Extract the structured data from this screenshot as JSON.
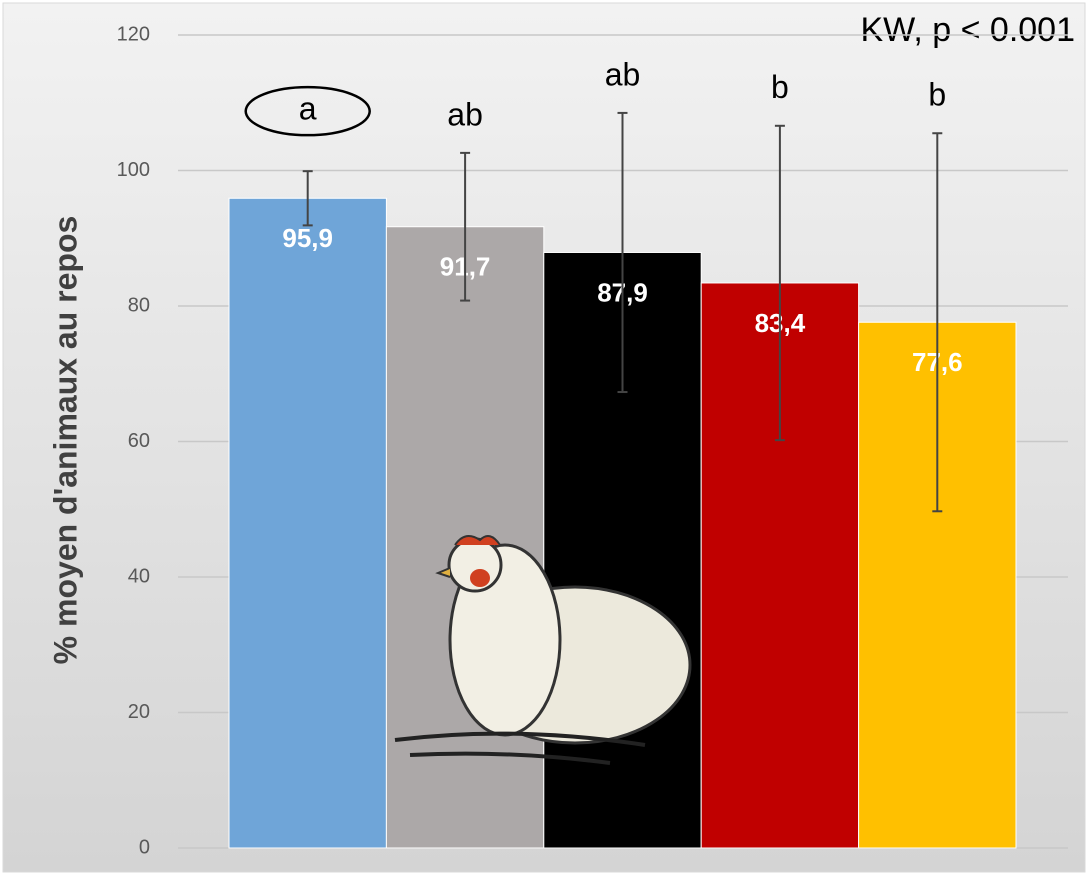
{
  "chart_data": {
    "type": "bar",
    "ylabel": "% moyen d'animaux au repos",
    "annotation": "KW, p < 0.001",
    "categories": [
      null,
      null,
      null,
      null,
      null
    ],
    "values": [
      95.9,
      91.7,
      87.9,
      83.4,
      77.6
    ],
    "value_labels": [
      "95,9",
      "91,7",
      "87,9",
      "83,4",
      "77,6"
    ],
    "errors": [
      4.0,
      10.9,
      20.6,
      23.2,
      27.9
    ],
    "letters": [
      "a",
      "ab",
      "ab",
      "b",
      "b"
    ],
    "colors": [
      "#6fa5d8",
      "#aca8a8",
      "#000000",
      "#c00000",
      "#ffc000"
    ],
    "ylim": [
      0,
      120
    ],
    "yticks": [
      0,
      20,
      40,
      60,
      80,
      100,
      120
    ],
    "grid": true
  }
}
